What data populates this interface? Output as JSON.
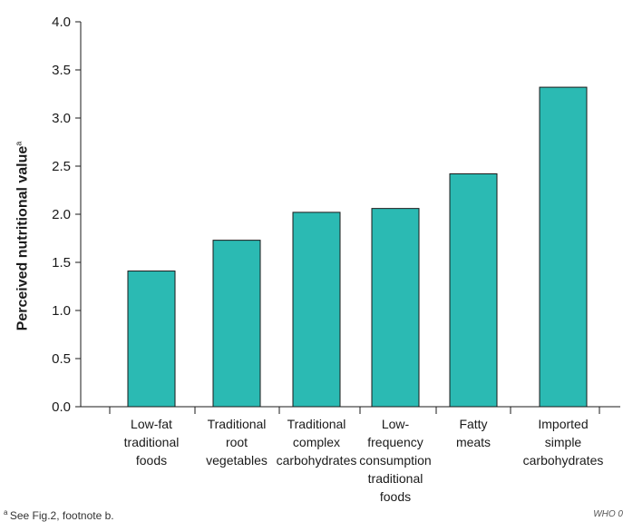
{
  "chart_data": {
    "type": "bar",
    "categories": [
      [
        "Low-fat",
        "traditional",
        "foods"
      ],
      [
        "Traditional",
        "root",
        "vegetables"
      ],
      [
        "Traditional",
        "complex",
        "carbohydrates"
      ],
      [
        "Low-",
        "frequency",
        "consumption",
        "traditional",
        "foods"
      ],
      [
        "Fatty",
        "meats"
      ],
      [
        "Imported",
        "simple",
        "carbohydrates"
      ]
    ],
    "values": [
      1.41,
      1.73,
      2.02,
      2.06,
      2.42,
      3.32
    ],
    "ylabel": "Perceived nutritional value",
    "ylabel_superscript": "a",
    "ylim": [
      0,
      4.0
    ],
    "yticks": [
      "0.0",
      "0.5",
      "1.0",
      "1.5",
      "2.0",
      "2.5",
      "3.0",
      "3.5",
      "4.0"
    ],
    "bar_color": "#2bbab3",
    "grid": false
  },
  "footnote": {
    "marker": "a",
    "text": "See Fig.2, footnote b."
  },
  "credit": "WHO 0"
}
